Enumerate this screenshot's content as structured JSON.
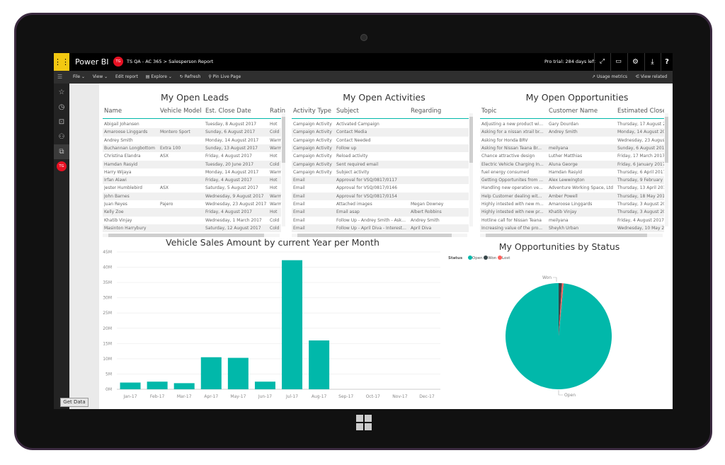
{
  "app": {
    "name": "Power BI",
    "user_initials": "TG",
    "workspace": "TS QA - AC 365",
    "breadcrumb_sep": ">",
    "report": "Salesperson Report",
    "trial": "Pro trial: 284 days left"
  },
  "toolbar": {
    "file": "File",
    "view": "View",
    "edit": "Edit report",
    "explore": "Explore",
    "refresh": "Refresh",
    "pin": "Pin Live Page",
    "usage": "Usage metrics",
    "related": "View related"
  },
  "nav": {
    "badge": "TG",
    "get_data": "Get Data"
  },
  "leads": {
    "title": "My Open Leads",
    "columns": [
      "Name",
      "Vehicle Model",
      "Est. Close Date",
      "Rating"
    ],
    "rows": [
      [
        "Abigail Johansen",
        "",
        "Tuesday, 8 August 2017",
        "Hot"
      ],
      [
        "Amaroose Linggards",
        "Montero Sport",
        "Sunday, 6 August 2017",
        "Cold"
      ],
      [
        "Andrey Smith",
        "",
        "Monday, 14 August 2017",
        "Warm"
      ],
      [
        "Buchannan Longbottom",
        "Extra 100",
        "Sunday, 13 August 2017",
        "Warm"
      ],
      [
        "Christina Elandra",
        "ASX",
        "Friday, 4 August 2017",
        "Hot"
      ],
      [
        "Hamdan Rasyid",
        "",
        "Tuesday, 20 June 2017",
        "Cold"
      ],
      [
        "Harry Wijaya",
        "",
        "Monday, 14 August 2017",
        "Warm"
      ],
      [
        "Irfan Alawi",
        "",
        "Friday, 4 August 2017",
        "Hot"
      ],
      [
        "Jester Humblebird",
        "ASX",
        "Saturday, 5 August 2017",
        "Hot"
      ],
      [
        "John Barnes",
        "",
        "Wednesday, 9 August 2017",
        "Warm"
      ],
      [
        "Juan Reyes",
        "Pajero",
        "Wednesday, 23 August 2017",
        "Warm"
      ],
      [
        "Kelly Zoe",
        "",
        "Friday, 4 August 2017",
        "Hot"
      ],
      [
        "Khatib Vinjay",
        "",
        "Wednesday, 1 March 2017",
        "Cold"
      ],
      [
        "Masinton Harrybury",
        "",
        "Saturday, 12 August 2017",
        "Cold"
      ]
    ]
  },
  "activities": {
    "title": "My Open Activities",
    "columns": [
      "Activity Type",
      "Subject",
      "Regarding"
    ],
    "rows": [
      [
        "Campaign Activity",
        "Activated Campaign",
        ""
      ],
      [
        "Campaign Activity",
        "Contact Media",
        ""
      ],
      [
        "Campaign Activity",
        "Contact Needed",
        ""
      ],
      [
        "Campaign Activity",
        "Follow up",
        ""
      ],
      [
        "Campaign Activity",
        "Reload activity",
        ""
      ],
      [
        "Campaign Activity",
        "Sent required email",
        ""
      ],
      [
        "Campaign Activity",
        "Subject activity",
        ""
      ],
      [
        "Email",
        "Approval for VSQ/0817/0117",
        ""
      ],
      [
        "Email",
        "Approval for VSQ/0817/0146",
        ""
      ],
      [
        "Email",
        "Approval for VSQ/0817/0154",
        ""
      ],
      [
        "Email",
        "Attached images",
        "Megan Downey"
      ],
      [
        "Email",
        "Email asap",
        "Albert Robbins"
      ],
      [
        "Email",
        "Follow Up - Andrey Smith - Ask...",
        "Andrey Smith"
      ],
      [
        "Email",
        "Follow Up - April Diva - Interest...",
        "April Diva"
      ]
    ]
  },
  "opportunities": {
    "title": "My Open Opportunities",
    "columns": [
      "Topic",
      "Customer Name",
      "Estimated Close"
    ],
    "rows": [
      [
        "Adjusting a new product wi...",
        "Gary Dourdan",
        "Thursday, 17 August 2017"
      ],
      [
        "Asking for a nissan xtrail br...",
        "Andrey Smith",
        "Monday, 14 August 2017"
      ],
      [
        "Asking for Honda BRV",
        "",
        "Wednesday, 23 August 2017"
      ],
      [
        "Asking for Nissan Teana Br...",
        "meilyana",
        "Sunday, 6 August 2017"
      ],
      [
        "Chance attractive design",
        "Luther Matthias",
        "Friday, 17 March 2017"
      ],
      [
        "Electric Vehicle Charging In...",
        "Aluna George",
        "Friday, 6 January 2017"
      ],
      [
        "fuel energy consumed",
        "Hamdan Rasyid",
        "Thursday, 6 April 2017"
      ],
      [
        "Getting Opportunites from ...",
        "Alex Lewwington",
        "Thursday, 9 February 2017"
      ],
      [
        "Handling new operation ve...",
        "Adventure Working Space, Ltd",
        "Thursday, 13 April 2017"
      ],
      [
        "Help Customer dealing wit...",
        "Amber Powell",
        "Thursday, 18 May 2017"
      ],
      [
        "Highly intested with new m...",
        "Amaroose Linggards",
        "Thursday, 3 August 2017"
      ],
      [
        "Highly intested with new pr...",
        "Khatib Vinjay",
        "Thursday, 3 August 2017"
      ],
      [
        "Hotline call for Nissan Teana",
        "meilyana",
        "Friday, 4 August 2017"
      ],
      [
        "Increasing value of the pro...",
        "Sheykh Urban",
        "Wednesday, 10 May 2017"
      ]
    ]
  },
  "chart_data": [
    {
      "type": "bar",
      "title": "Vehicle Sales Amount by current Year per Month",
      "xlabel": "",
      "ylabel": "",
      "ylim": [
        0,
        45000000
      ],
      "yticks": [
        "0M",
        "5M",
        "10M",
        "15M",
        "20M",
        "25M",
        "30M",
        "35M",
        "40M",
        "45M"
      ],
      "grid": true,
      "color": "#01B8AA",
      "categories": [
        "Jan-17",
        "Feb-17",
        "Mar-17",
        "Apr-17",
        "May-17",
        "Jun-17",
        "Jul-17",
        "Aug-17",
        "Sep-17",
        "Oct-17",
        "Nov-17",
        "Dec-17"
      ],
      "values": [
        2200000,
        2500000,
        2000000,
        10500000,
        10300000,
        2500000,
        42300000,
        16000000,
        0,
        0,
        0,
        0
      ]
    },
    {
      "type": "pie",
      "title": "My Opportunities by Status",
      "legend_title": "Status",
      "legend": "top-left",
      "slices": [
        {
          "name": "Open",
          "value": 98.5,
          "color": "#01B8AA"
        },
        {
          "name": "Won",
          "value": 1.0,
          "color": "#374649"
        },
        {
          "name": "Lost",
          "value": 0.5,
          "color": "#FD625E"
        }
      ],
      "data_labels": [
        "Won",
        "Open"
      ]
    }
  ]
}
